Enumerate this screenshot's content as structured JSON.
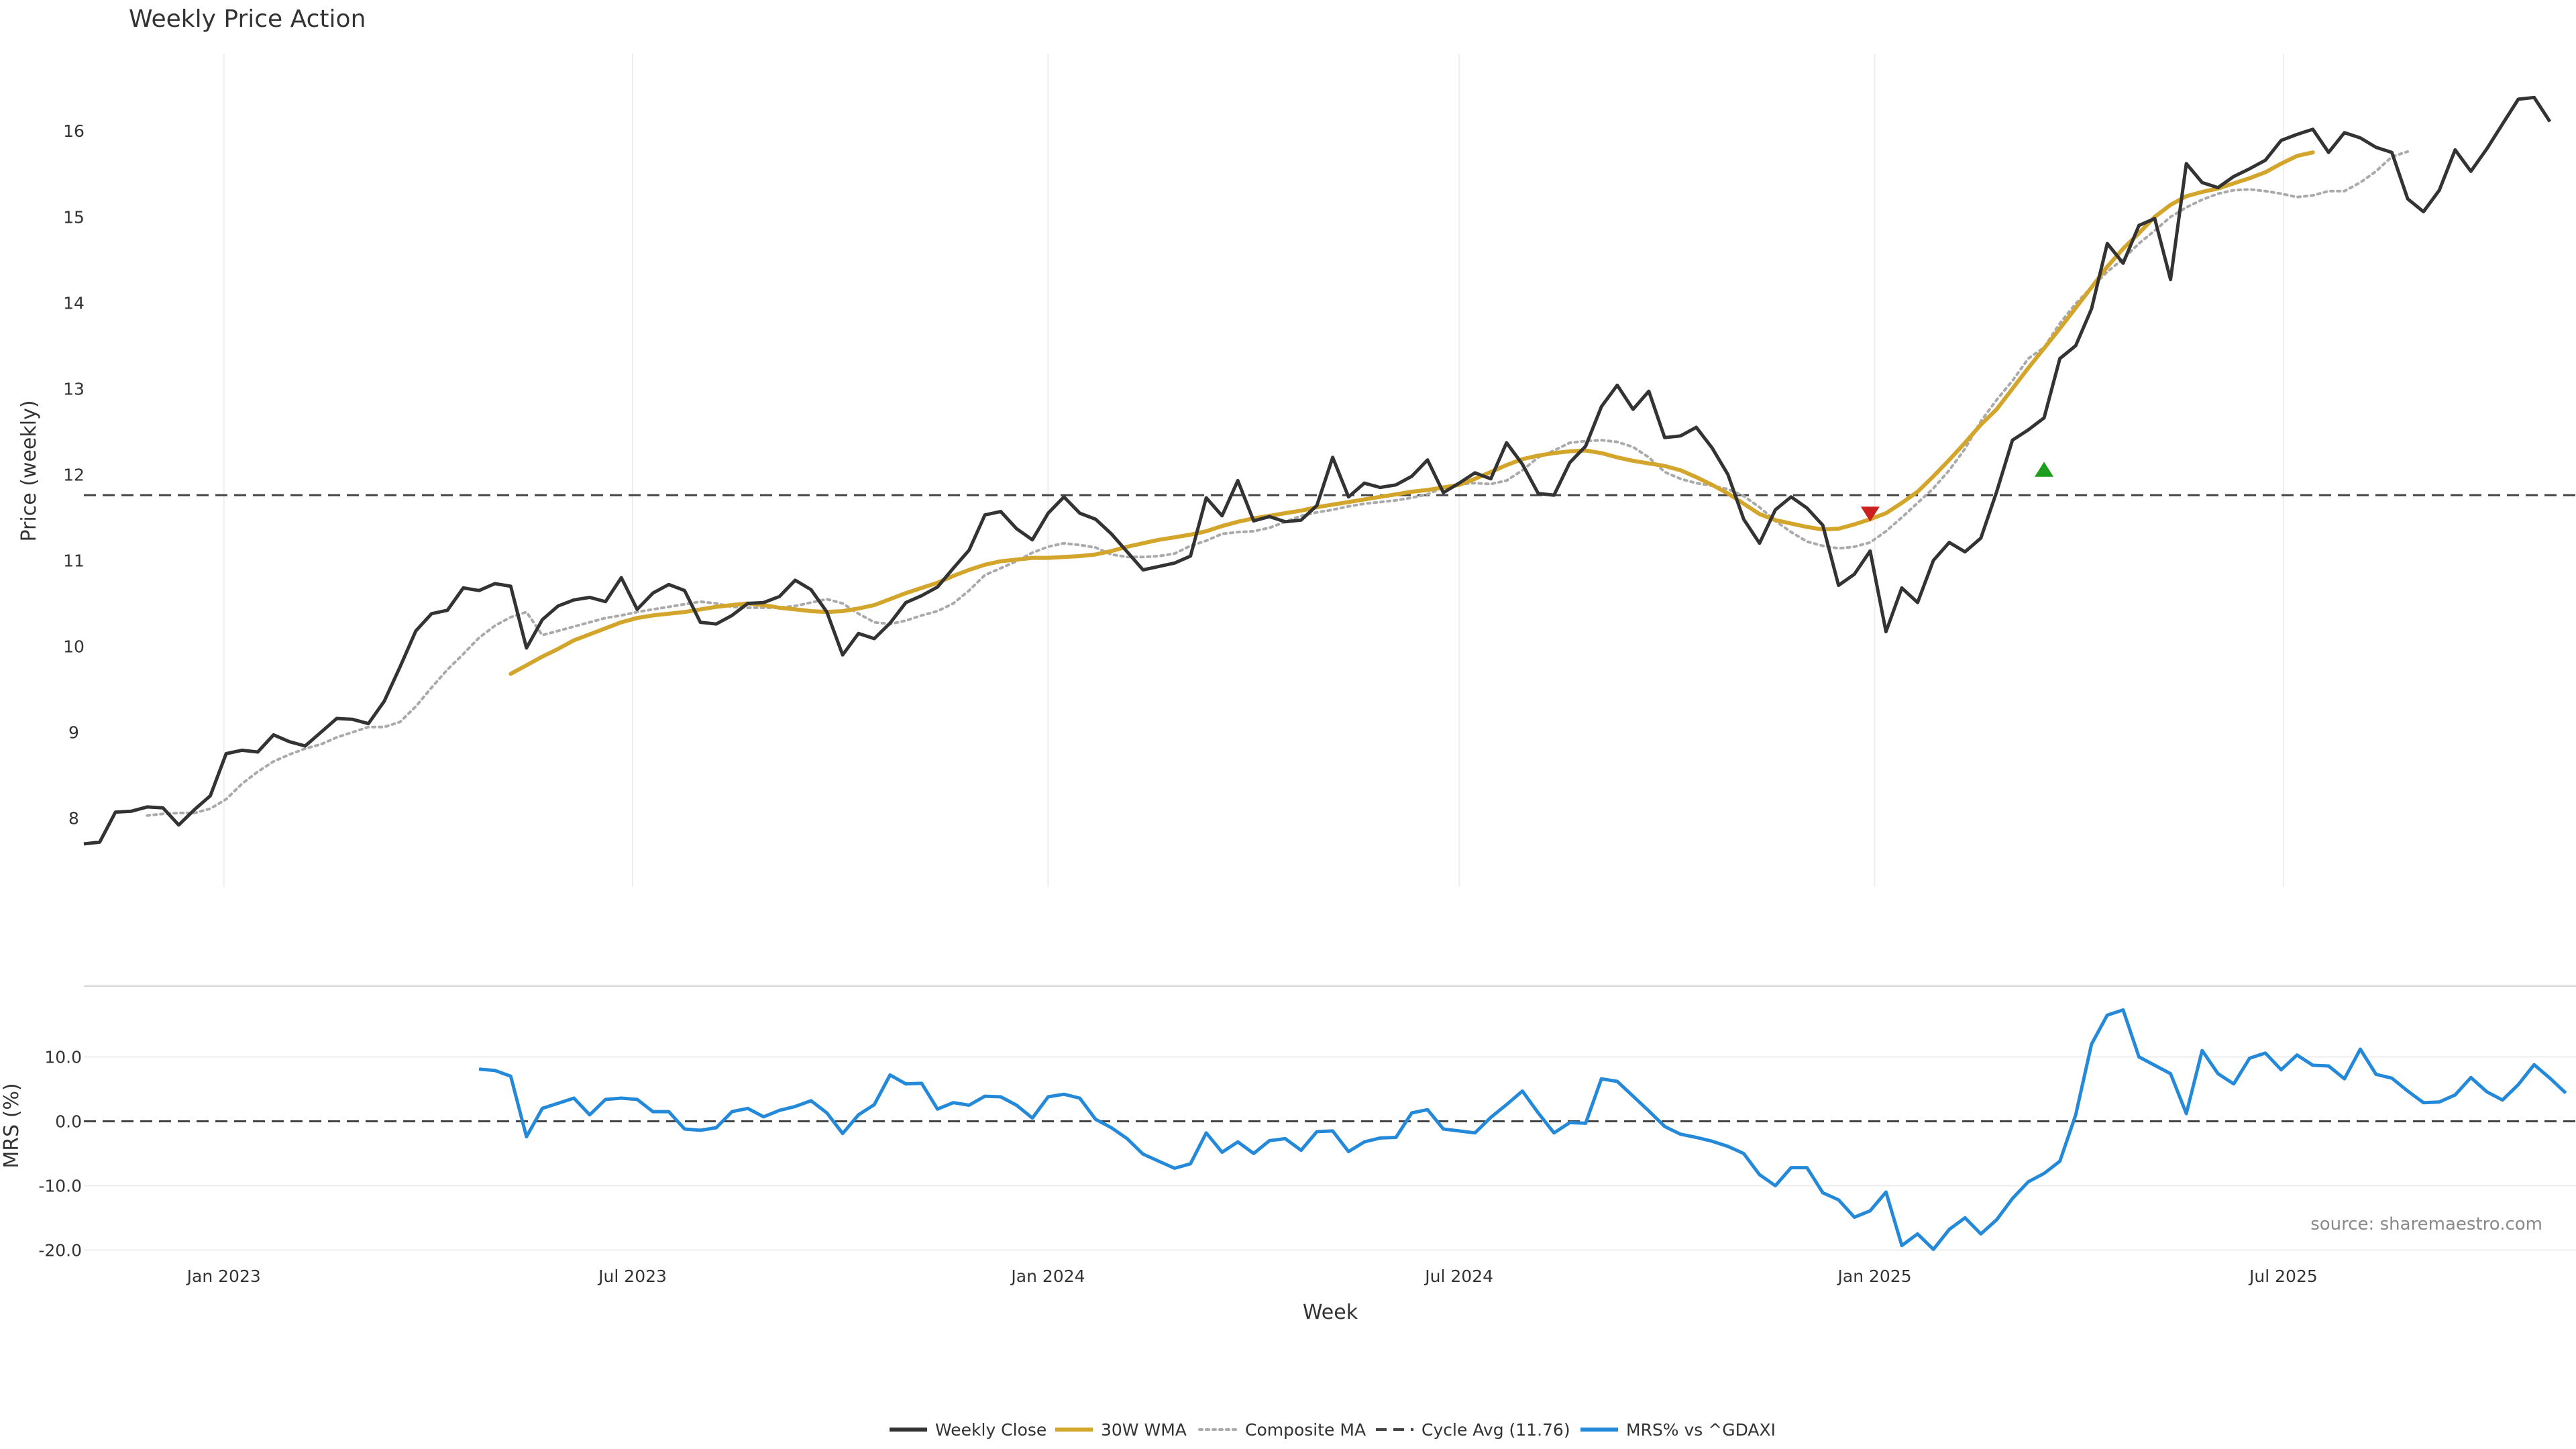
{
  "colors": {
    "close": "#333333",
    "wma": "#d4a52b",
    "composite": "#aaaaaa",
    "cycle": "#444444",
    "mrs": "#2389d8",
    "sell_marker": "#cc1f1f",
    "buy_marker": "#1e9e1e"
  },
  "chart_data": [
    {
      "type": "line",
      "title": "Weekly Price Action",
      "xlabel": "",
      "ylabel": "Price (weekly)",
      "x_start": "2022-10-31",
      "x_step_days": 7,
      "ylim": [
        7.2,
        16.9
      ],
      "yticks": [
        8,
        9,
        10,
        11,
        12,
        13,
        14,
        15,
        16
      ],
      "grid": "vertical",
      "series": [
        {
          "name": "Weekly Close",
          "values": [
            7.7,
            7.72,
            8.07,
            8.08,
            8.13,
            8.12,
            7.92,
            8.1,
            8.26,
            8.75,
            8.79,
            8.77,
            8.97,
            8.89,
            8.84,
            9.0,
            9.16,
            9.15,
            9.1,
            9.36,
            9.76,
            10.18,
            10.38,
            10.42,
            10.68,
            10.65,
            10.73,
            10.7,
            9.98,
            10.31,
            10.47,
            10.54,
            10.57,
            10.52,
            10.8,
            10.43,
            10.62,
            10.72,
            10.65,
            10.28,
            10.26,
            10.36,
            10.5,
            10.51,
            10.58,
            10.77,
            10.66,
            10.4,
            9.9,
            10.15,
            10.09,
            10.27,
            10.51,
            10.59,
            10.69,
            10.91,
            11.12,
            11.53,
            11.57,
            11.37,
            11.24,
            11.55,
            11.74,
            11.55,
            11.48,
            11.31,
            11.1,
            10.89,
            10.93,
            10.97,
            11.05,
            11.73,
            11.52,
            11.93,
            11.46,
            11.51,
            11.45,
            11.47,
            11.64,
            12.2,
            11.74,
            11.9,
            11.85,
            11.88,
            11.98,
            12.17,
            11.79,
            11.9,
            12.02,
            11.95,
            12.37,
            12.12,
            11.78,
            11.76,
            12.14,
            12.33,
            12.79,
            13.04,
            12.76,
            12.97,
            12.43,
            12.45,
            12.55,
            12.31,
            12.0,
            11.48,
            11.2,
            11.59,
            11.74,
            11.61,
            11.41,
            10.71,
            10.84,
            11.11,
            10.17,
            10.68,
            10.51,
            11.0,
            11.21,
            11.1,
            11.26,
            11.8,
            12.4,
            12.52,
            12.66,
            13.35,
            13.5,
            13.93,
            14.69,
            14.46,
            14.9,
            14.98,
            14.27,
            15.62,
            15.4,
            15.34,
            15.47,
            15.56,
            15.66,
            15.89,
            15.96,
            16.02,
            15.75,
            15.98,
            15.92,
            15.81,
            15.75,
            15.21,
            15.06,
            15.31,
            15.78,
            15.53,
            15.79,
            16.08,
            16.37,
            16.39,
            16.11
          ]
        },
        {
          "name": "30W WMA",
          "offset": 27,
          "values": [
            9.68,
            9.78,
            9.88,
            9.97,
            10.07,
            10.14,
            10.21,
            10.28,
            10.33,
            10.36,
            10.38,
            10.4,
            10.43,
            10.46,
            10.48,
            10.5,
            10.48,
            10.45,
            10.43,
            10.41,
            10.4,
            10.41,
            10.44,
            10.48,
            10.55,
            10.62,
            10.68,
            10.74,
            10.82,
            10.89,
            10.95,
            10.99,
            11.01,
            11.03,
            11.03,
            11.04,
            11.05,
            11.07,
            11.11,
            11.16,
            11.2,
            11.24,
            11.27,
            11.3,
            11.34,
            11.4,
            11.45,
            11.49,
            11.52,
            11.55,
            11.58,
            11.62,
            11.65,
            11.68,
            11.71,
            11.74,
            11.77,
            11.8,
            11.82,
            11.85,
            11.88,
            11.95,
            12.03,
            12.11,
            12.18,
            12.22,
            12.25,
            12.27,
            12.28,
            12.25,
            12.2,
            12.16,
            12.13,
            12.1,
            12.05,
            11.97,
            11.88,
            11.78,
            11.66,
            11.54,
            11.47,
            11.43,
            11.39,
            11.36,
            11.37,
            11.42,
            11.48,
            11.55,
            11.67,
            11.8,
            11.98,
            12.17,
            12.37,
            12.58,
            12.76,
            13.0,
            13.24,
            13.47,
            13.7,
            13.94,
            14.18,
            14.42,
            14.63,
            14.81,
            15.0,
            15.14,
            15.24,
            15.29,
            15.33,
            15.39,
            15.45,
            15.52,
            15.62,
            15.71,
            15.75
          ]
        },
        {
          "name": "Composite MA",
          "offset": 4,
          "values": [
            8.03,
            8.05,
            8.06,
            8.06,
            8.11,
            8.22,
            8.4,
            8.54,
            8.66,
            8.74,
            8.81,
            8.86,
            8.94,
            9.0,
            9.06,
            9.06,
            9.12,
            9.3,
            9.52,
            9.73,
            9.91,
            10.1,
            10.24,
            10.34,
            10.4,
            10.13,
            10.18,
            10.23,
            10.28,
            10.33,
            10.36,
            10.4,
            10.43,
            10.46,
            10.49,
            10.52,
            10.5,
            10.46,
            10.45,
            10.45,
            10.45,
            10.47,
            10.51,
            10.55,
            10.5,
            10.38,
            10.28,
            10.26,
            10.3,
            10.36,
            10.41,
            10.5,
            10.65,
            10.83,
            10.91,
            10.99,
            11.09,
            11.16,
            11.2,
            11.18,
            11.15,
            11.07,
            11.04,
            11.04,
            11.05,
            11.08,
            11.17,
            11.23,
            11.31,
            11.33,
            11.34,
            11.38,
            11.45,
            11.52,
            11.56,
            11.59,
            11.63,
            11.66,
            11.68,
            11.7,
            11.73,
            11.77,
            11.85,
            11.89,
            11.9,
            11.89,
            11.93,
            12.05,
            12.2,
            12.28,
            12.37,
            12.39,
            12.4,
            12.38,
            12.32,
            12.2,
            12.03,
            11.95,
            11.9,
            11.87,
            11.83,
            11.75,
            11.62,
            11.46,
            11.33,
            11.22,
            11.17,
            11.14,
            11.16,
            11.21,
            11.34,
            11.5,
            11.67,
            11.84,
            12.05,
            12.3,
            12.62,
            12.87,
            13.09,
            13.35,
            13.48,
            13.76,
            13.99,
            14.18,
            14.36,
            14.51,
            14.69,
            14.84,
            15.0,
            15.11,
            15.2,
            15.27,
            15.31,
            15.32,
            15.3,
            15.27,
            15.23,
            15.25,
            15.3,
            15.3,
            15.4,
            15.53,
            15.7,
            15.76
          ]
        },
        {
          "name": "Cycle Avg (11.76)",
          "constant": 11.76
        }
      ],
      "markers": [
        {
          "type": "sell",
          "index": 113,
          "value": 11.55
        },
        {
          "type": "buy",
          "index": 124,
          "value": 12.05
        }
      ]
    },
    {
      "type": "line",
      "xlabel": "Week",
      "ylabel": "MRS (%)",
      "ylim": [
        -21,
        21
      ],
      "yticks": [
        10.0,
        0.0,
        -10.0,
        -20.0
      ],
      "x_ticks": [
        "Jan 2023",
        "Jul 2023",
        "Jan 2024",
        "Jul 2024",
        "Jan 2025",
        "Jul 2025"
      ],
      "x_tick_dates": [
        "2023-01-01",
        "2023-07-01",
        "2024-01-01",
        "2024-07-01",
        "2025-01-01",
        "2025-07-01"
      ],
      "reference_line": 0,
      "series": [
        {
          "name": "MRS% vs ^GDAXI",
          "offset": 25,
          "values": [
            8.1,
            7.9,
            7.0,
            -2.4,
            2.0,
            2.8,
            3.6,
            1.0,
            3.4,
            3.6,
            3.4,
            1.5,
            1.5,
            -1.2,
            -1.4,
            -1.0,
            1.5,
            2.0,
            0.7,
            1.7,
            2.3,
            3.2,
            1.3,
            -1.9,
            1.0,
            2.6,
            7.2,
            5.8,
            5.9,
            1.9,
            2.9,
            2.5,
            3.9,
            3.8,
            2.5,
            0.5,
            3.8,
            4.2,
            3.6,
            0.3,
            -1.0,
            -2.7,
            -5.1,
            -6.2,
            -7.3,
            -6.6,
            -1.8,
            -4.8,
            -3.2,
            -5.0,
            -3.0,
            -2.7,
            -4.5,
            -1.6,
            -1.5,
            -4.7,
            -3.2,
            -2.6,
            -2.5,
            1.3,
            1.8,
            -1.2,
            -1.5,
            -1.8,
            0.6,
            2.6,
            4.7,
            1.3,
            -1.8,
            -0.2,
            -0.3,
            6.6,
            6.2,
            3.9,
            1.6,
            -0.8,
            -2.0,
            -2.5,
            -3.1,
            -3.9,
            -5.0,
            -8.3,
            -10.0,
            -7.2,
            -7.2,
            -11.1,
            -12.2,
            -14.9,
            -13.9,
            -11.0,
            -19.3,
            -17.5,
            -19.9,
            -16.8,
            -15.0,
            -17.5,
            -15.3,
            -12.0,
            -9.4,
            -8.1,
            -6.2,
            1.0,
            12.0,
            16.5,
            17.3,
            10.0,
            8.7,
            7.4,
            1.2,
            11.0,
            7.4,
            5.8,
            9.8,
            10.6,
            8.0,
            10.3,
            8.7,
            8.6,
            6.6,
            11.2,
            7.3,
            6.7,
            4.7,
            2.9,
            3.0,
            4.1,
            6.8,
            4.6,
            3.3,
            5.7,
            8.8,
            6.7,
            4.4
          ]
        }
      ]
    }
  ],
  "source_text": "source: sharemaestro.com",
  "legend": [
    {
      "label": "Weekly Close",
      "style": "solid",
      "color_key": "close"
    },
    {
      "label": "30W WMA",
      "style": "solid",
      "color_key": "wma"
    },
    {
      "label": "Composite MA",
      "style": "dotted",
      "color_key": "composite"
    },
    {
      "label": "Cycle Avg (11.76)",
      "style": "dashed",
      "color_key": "cycle"
    },
    {
      "label": "MRS% vs ^GDAXI",
      "style": "solid",
      "color_key": "mrs"
    }
  ]
}
